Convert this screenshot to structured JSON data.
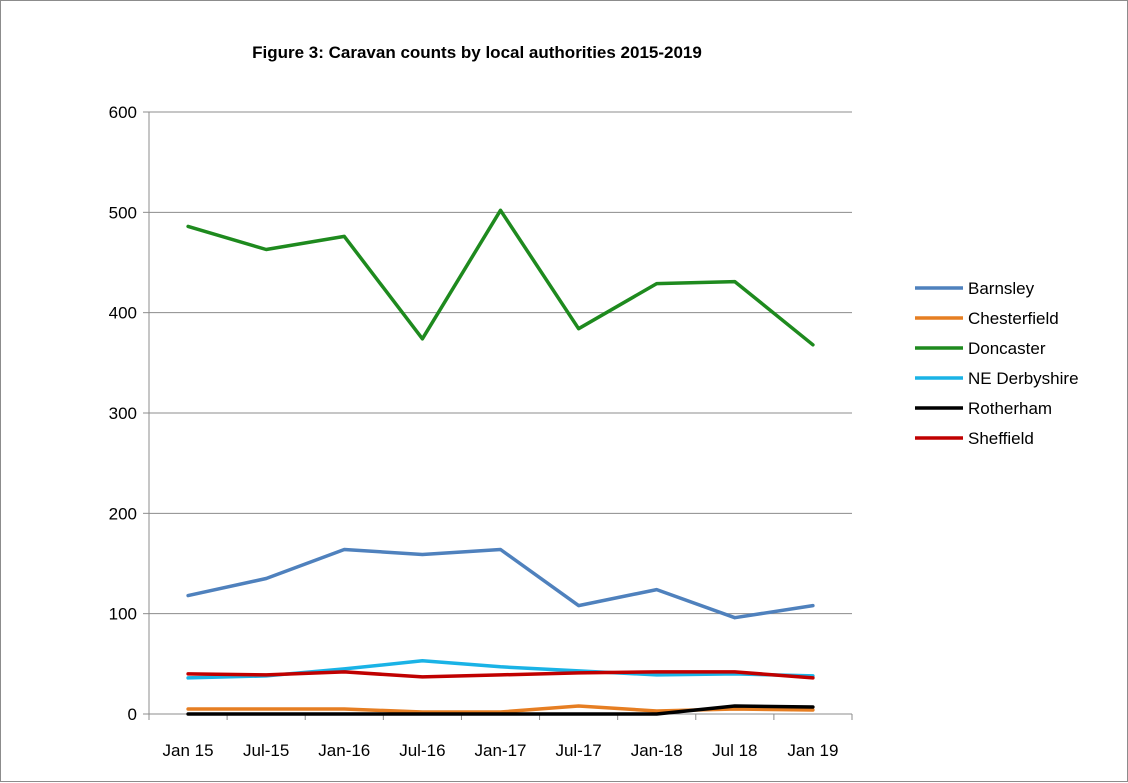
{
  "chart_data": {
    "type": "line",
    "title": "Figure 3: Caravan counts by local authorities 2015-2019",
    "xlabel": "",
    "ylabel": "",
    "categories": [
      "Jan 15",
      "Jul-15",
      "Jan-16",
      "Jul-16",
      "Jan-17",
      "Jul-17",
      "Jan-18",
      "Jul 18",
      "Jan 19"
    ],
    "ylim": [
      0,
      600
    ],
    "yticks": [
      0,
      100,
      200,
      300,
      400,
      500,
      600
    ],
    "grid": "horizontal",
    "legend_position": "right",
    "series": [
      {
        "name": "Barnsley",
        "color": "#4f81bd",
        "values": [
          118,
          135,
          164,
          159,
          164,
          108,
          124,
          96,
          108
        ]
      },
      {
        "name": "Chesterfield",
        "color": "#e67e22",
        "values": [
          5,
          5,
          5,
          2,
          2,
          8,
          3,
          5,
          4
        ]
      },
      {
        "name": "Doncaster",
        "color": "#1e8a1e",
        "values": [
          486,
          463,
          476,
          374,
          502,
          384,
          429,
          431,
          368
        ]
      },
      {
        "name": "NE Derbyshire",
        "color": "#1ab3e6",
        "values": [
          36,
          38,
          45,
          53,
          47,
          43,
          39,
          40,
          38
        ]
      },
      {
        "name": "Rotherham",
        "color": "#000000",
        "values": [
          0,
          0,
          0,
          0,
          0,
          0,
          0,
          8,
          7
        ]
      },
      {
        "name": "Sheffield",
        "color": "#c00000",
        "values": [
          40,
          39,
          42,
          37,
          39,
          41,
          42,
          42,
          36
        ]
      }
    ]
  }
}
